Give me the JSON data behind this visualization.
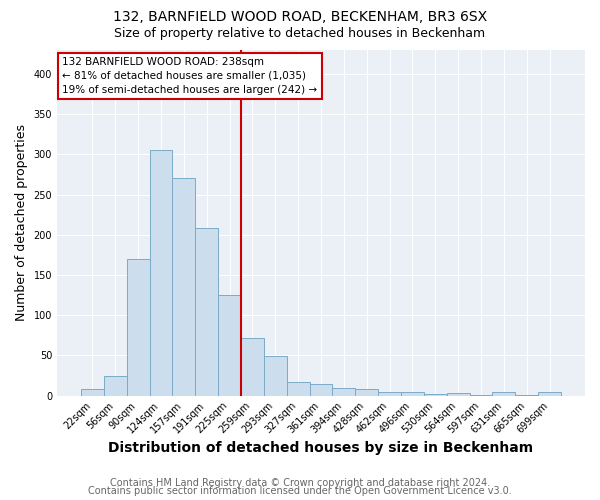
{
  "title1": "132, BARNFIELD WOOD ROAD, BECKENHAM, BR3 6SX",
  "title2": "Size of property relative to detached houses in Beckenham",
  "xlabel": "Distribution of detached houses by size in Beckenham",
  "ylabel": "Number of detached properties",
  "bar_labels": [
    "22sqm",
    "56sqm",
    "90sqm",
    "124sqm",
    "157sqm",
    "191sqm",
    "225sqm",
    "259sqm",
    "293sqm",
    "327sqm",
    "361sqm",
    "394sqm",
    "428sqm",
    "462sqm",
    "496sqm",
    "530sqm",
    "564sqm",
    "597sqm",
    "631sqm",
    "665sqm",
    "699sqm"
  ],
  "bar_values": [
    8,
    24,
    170,
    305,
    271,
    208,
    125,
    72,
    49,
    17,
    14,
    9,
    8,
    5,
    4,
    2,
    3,
    1,
    4,
    1,
    4
  ],
  "bar_color": "#ccdded",
  "bar_edgecolor": "#7baac8",
  "vline_color": "#cc0000",
  "annotation_text": "132 BARNFIELD WOOD ROAD: 238sqm\n← 81% of detached houses are smaller (1,035)\n19% of semi-detached houses are larger (242) →",
  "annotation_box_edgecolor": "#cc0000",
  "footer1": "Contains HM Land Registry data © Crown copyright and database right 2024.",
  "footer2": "Contains public sector information licensed under the Open Government Licence v3.0.",
  "background_color": "#eaf0f6",
  "ylim": [
    0,
    430
  ],
  "title1_fontsize": 10,
  "title2_fontsize": 9,
  "xlabel_fontsize": 10,
  "ylabel_fontsize": 9,
  "tick_fontsize": 7,
  "footer_fontsize": 7
}
